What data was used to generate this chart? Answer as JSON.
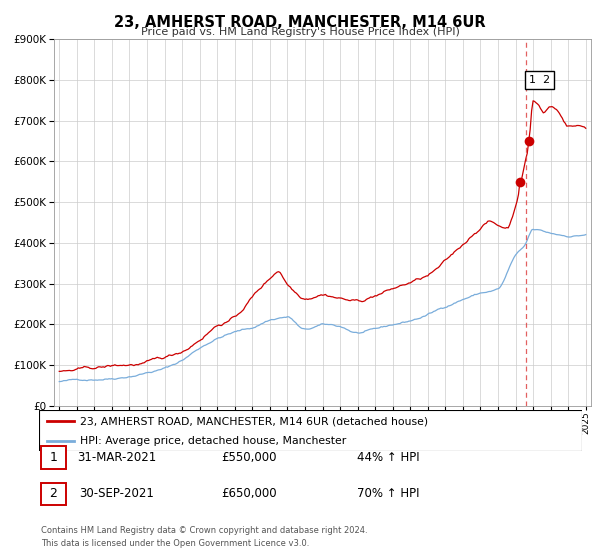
{
  "title": "23, AMHERST ROAD, MANCHESTER, M14 6UR",
  "subtitle": "Price paid vs. HM Land Registry's House Price Index (HPI)",
  "legend_line1": "23, AMHERST ROAD, MANCHESTER, M14 6UR (detached house)",
  "legend_line2": "HPI: Average price, detached house, Manchester",
  "footer": "Contains HM Land Registry data © Crown copyright and database right 2024.\nThis data is licensed under the Open Government Licence v3.0.",
  "transaction1_label": "1",
  "transaction1_date": "31-MAR-2021",
  "transaction1_price": "£550,000",
  "transaction1_hpi": "44% ↑ HPI",
  "transaction2_label": "2",
  "transaction2_date": "30-SEP-2021",
  "transaction2_price": "£650,000",
  "transaction2_hpi": "70% ↑ HPI",
  "red_color": "#cc0000",
  "blue_color": "#7aaddb",
  "dashed_line_color": "#dd4444",
  "marker1_price": 550000,
  "marker2_price": 650000,
  "marker1_year": 2021.25,
  "marker2_year": 2021.75,
  "vline_year": 2021.6,
  "ylim": [
    0,
    900000
  ],
  "yticks": [
    0,
    100000,
    200000,
    300000,
    400000,
    500000,
    600000,
    700000,
    800000,
    900000
  ],
  "start_year": 1995,
  "end_year": 2025
}
